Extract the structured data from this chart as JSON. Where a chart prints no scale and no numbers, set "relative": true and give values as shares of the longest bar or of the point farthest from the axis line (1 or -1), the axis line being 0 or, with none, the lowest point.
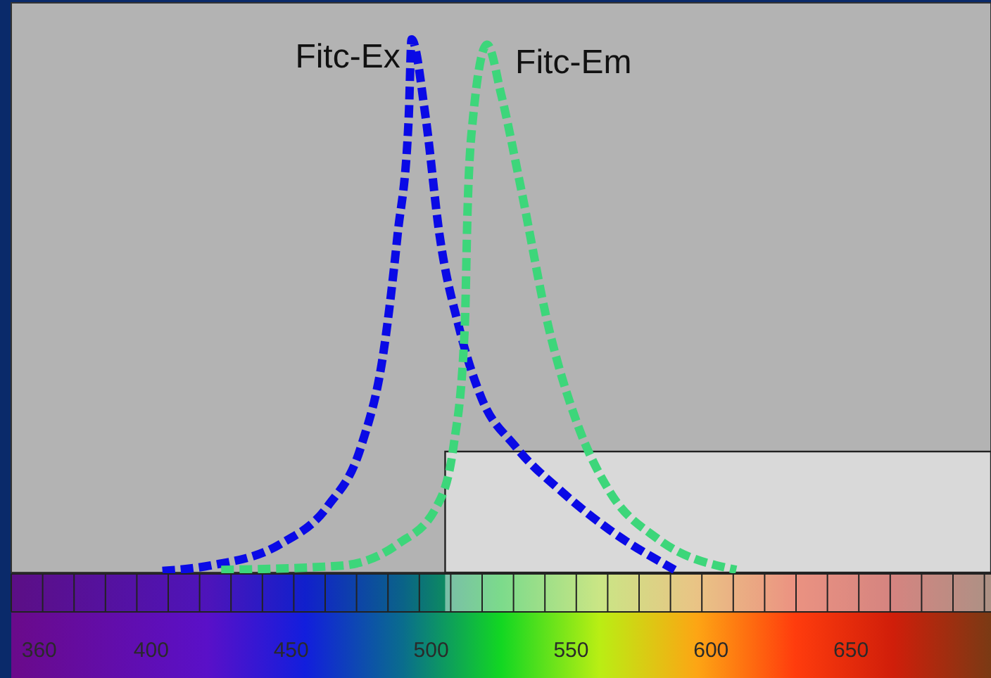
{
  "chart_data": {
    "type": "line",
    "relative": true,
    "line_style": "dashed",
    "marker": "none",
    "grid": false,
    "xlim": [
      350,
      700
    ],
    "xticks": [
      360,
      400,
      450,
      500,
      550,
      600,
      650
    ],
    "bands": [
      {
        "axis": "x",
        "from": 505,
        "to": 700,
        "color": "#d9d9d9"
      }
    ],
    "series": [
      {
        "name": "Fitc-Ex",
        "color": "#0a0ae6",
        "x": [
          404,
          421,
          446,
          463,
          475,
          483,
          488,
          492,
          493,
          498,
          503,
          510,
          518,
          530,
          547,
          564,
          587
        ],
        "values": [
          0.003,
          0.013,
          0.053,
          0.124,
          0.237,
          0.414,
          0.633,
          0.855,
          1,
          0.855,
          0.633,
          0.459,
          0.327,
          0.237,
          0.15,
          0.079,
          0.005
        ]
      },
      {
        "name": "Fitc-Em",
        "color": "#3dd67a",
        "x": [
          425,
          468,
          488,
          502,
          508,
          512,
          513,
          515,
          520,
          525,
          532,
          542,
          552,
          564,
          581,
          609
        ],
        "values": [
          0.005,
          0.013,
          0.053,
          0.124,
          0.237,
          0.459,
          0.678,
          0.855,
          0.99,
          0.897,
          0.723,
          0.459,
          0.282,
          0.15,
          0.063,
          0.005
        ]
      }
    ]
  }
}
